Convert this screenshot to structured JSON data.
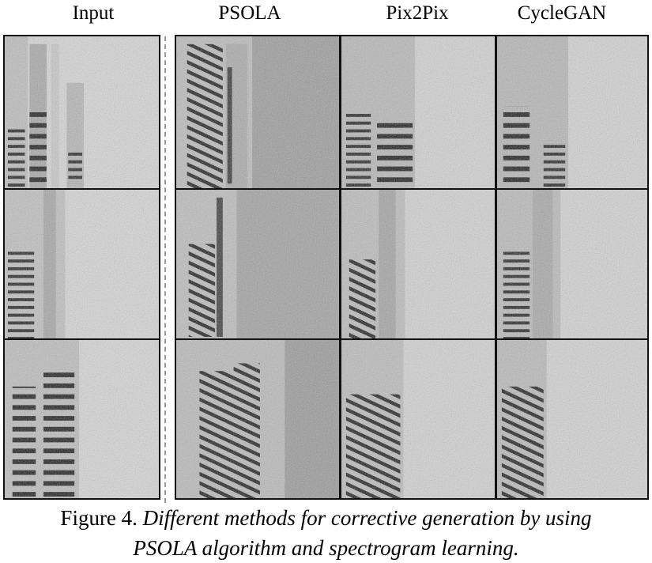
{
  "columns": [
    {
      "label": "Input"
    },
    {
      "label": "PSOLA"
    },
    {
      "label": "Pix2Pix"
    },
    {
      "label": "CycleGAN"
    }
  ],
  "caption": {
    "lead": "Figure 4. ",
    "line1": "Different methods for corrective generation by using",
    "line2": "PSOLA algorithm and spectrogram learning."
  }
}
